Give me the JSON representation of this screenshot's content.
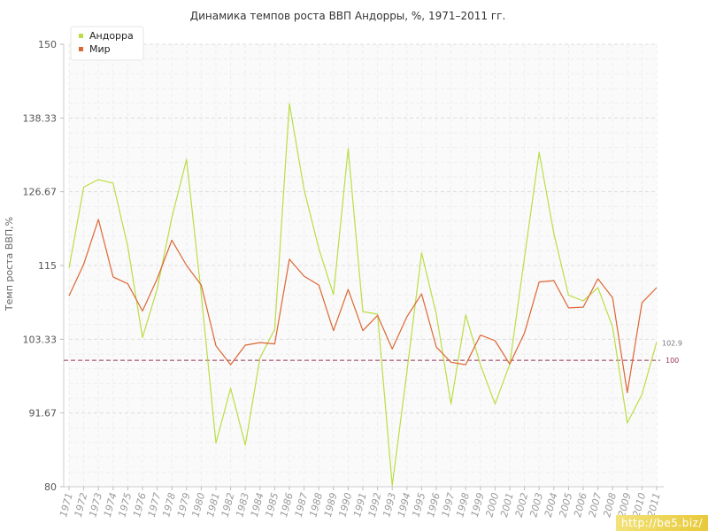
{
  "chart_data": {
    "type": "line",
    "title": "Динамика темпов роста ВВП Андорры, %, 1971–2011 гг.",
    "ylabel": "Темп роста ВВП,%",
    "xlabel": "",
    "ylim": [
      80,
      150
    ],
    "yticks": [
      "80",
      "91.67",
      "103.33",
      "115",
      "126.67",
      "138.33",
      "150"
    ],
    "ytick_values": [
      80,
      91.67,
      103.33,
      115,
      126.67,
      138.33,
      150
    ],
    "reference_line": {
      "value": 100,
      "label": "100",
      "color": "#993355"
    },
    "grid": true,
    "legend_position": "top-left",
    "x": [
      "1971",
      "1972",
      "1973",
      "1974",
      "1975",
      "1976",
      "1977",
      "1978",
      "1979",
      "1980",
      "1981",
      "1982",
      "1983",
      "1984",
      "1985",
      "1986",
      "1987",
      "1988",
      "1989",
      "1990",
      "1991",
      "1992",
      "1993",
      "1994",
      "1995",
      "1996",
      "1997",
      "1998",
      "1999",
      "2000",
      "2001",
      "2002",
      "2003",
      "2004",
      "2005",
      "2006",
      "2007",
      "2008",
      "2009",
      "2010",
      "2011"
    ],
    "series": [
      {
        "name": "Андорра",
        "color": "#bbdd44",
        "values": [
          114.6,
          127.4,
          128.6,
          128.0,
          118.0,
          103.6,
          111.3,
          122.6,
          131.8,
          110.5,
          86.9,
          95.6,
          86.6,
          100.4,
          104.9,
          140.6,
          127.0,
          117.7,
          110.4,
          133.5,
          107.7,
          107.3,
          80.2,
          98.2,
          117.0,
          107.3,
          93.1,
          107.2,
          99.3,
          93.1,
          99.4,
          116.2,
          132.9,
          120.1,
          110.3,
          109.4,
          111.5,
          105.3,
          90.1,
          94.6,
          102.9
        ],
        "last_label": "102.9"
      },
      {
        "name": "Мир",
        "color": "#dd6633",
        "values": [
          110.2,
          115.2,
          122.3,
          113.2,
          112.1,
          107.8,
          112.9,
          119.0,
          115.0,
          111.9,
          102.3,
          99.3,
          102.4,
          102.8,
          102.6,
          116.0,
          113.3,
          111.9,
          104.7,
          111.2,
          104.7,
          107.1,
          101.8,
          106.9,
          110.5,
          102.1,
          99.7,
          99.3,
          104.0,
          103.1,
          99.4,
          104.3,
          112.4,
          112.6,
          108.3,
          108.4,
          112.9,
          109.9,
          94.9,
          109.1,
          111.5
        ]
      }
    ]
  },
  "watermark": "http://be5.biz/"
}
